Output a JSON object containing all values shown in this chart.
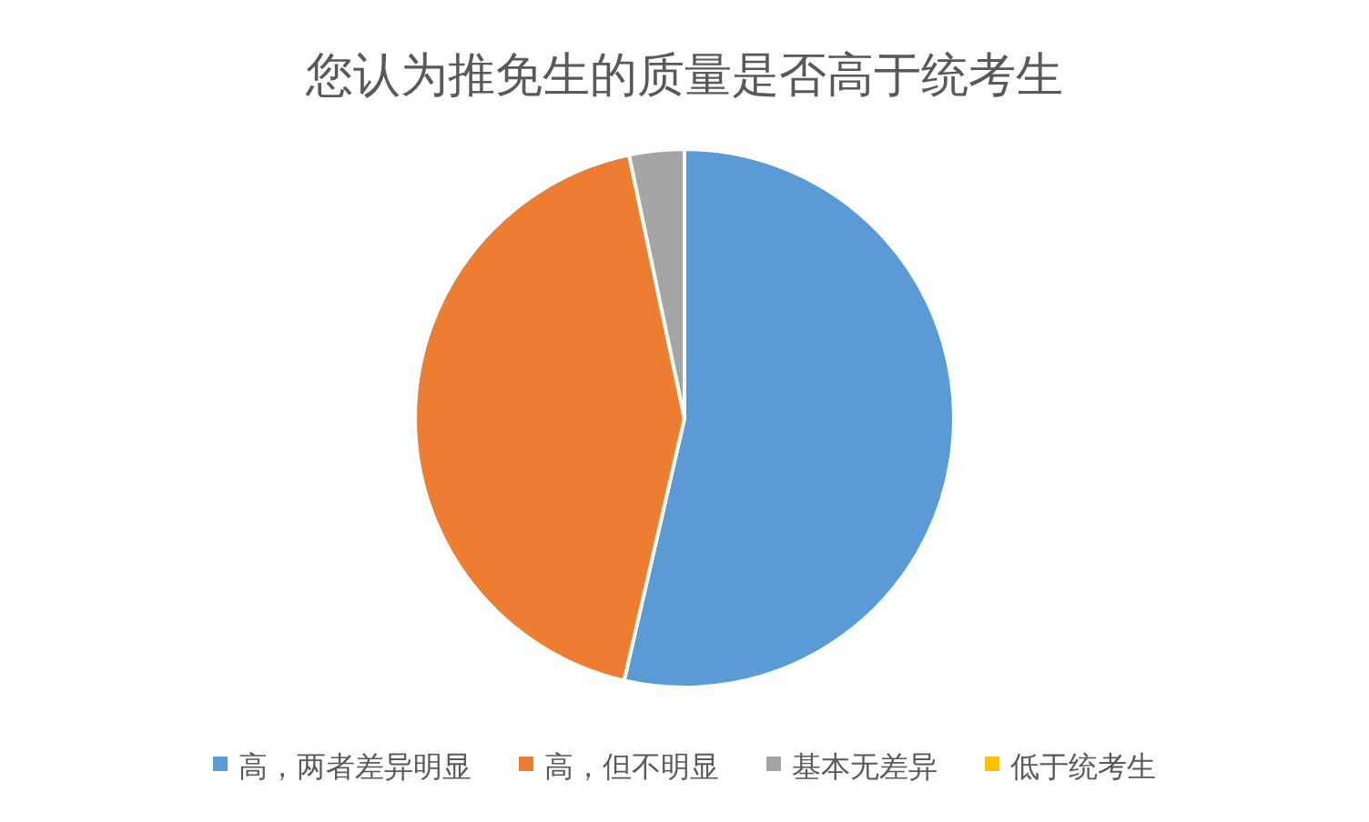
{
  "chart_data": {
    "type": "pie",
    "title": "您认为推免生的质量是否高于统考生",
    "categories": [
      "高，两者差异明显",
      "高，但不明显",
      "基本无差异",
      "低于统考生"
    ],
    "values": [
      53.6,
      43.1,
      3.3,
      0
    ],
    "colors": [
      "#5b9bd5",
      "#ed7d31",
      "#a5a5a5",
      "#ffc000"
    ],
    "legend": "bottom"
  }
}
